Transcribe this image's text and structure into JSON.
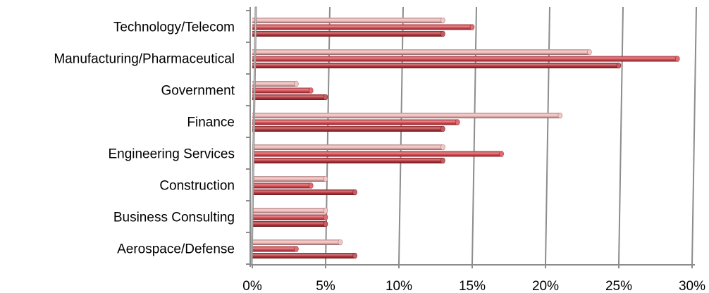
{
  "chart_data": {
    "type": "bar",
    "orientation": "horizontal",
    "style": "3d-cylinder",
    "categories": [
      "Technology/Telecom",
      "Manufacturing/Pharmaceutical",
      "Government",
      "Finance",
      "Engineering Services",
      "Construction",
      "Business Consulting",
      "Aerospace/Defense"
    ],
    "series": [
      {
        "values": [
          13,
          23,
          3,
          21,
          13,
          5,
          5,
          6
        ],
        "color": "#f2b8b8"
      },
      {
        "values": [
          15,
          29,
          4,
          14,
          17,
          4,
          5,
          3
        ],
        "color": "#d9474f"
      },
      {
        "values": [
          13,
          25,
          5,
          13,
          13,
          7,
          5,
          7
        ],
        "color": "#b8343a"
      }
    ],
    "x_ticks": [
      "0%",
      "5%",
      "10%",
      "15%",
      "20%",
      "25%",
      "30%"
    ],
    "xlim": [
      0,
      30
    ],
    "grid": true,
    "legend": "none"
  }
}
